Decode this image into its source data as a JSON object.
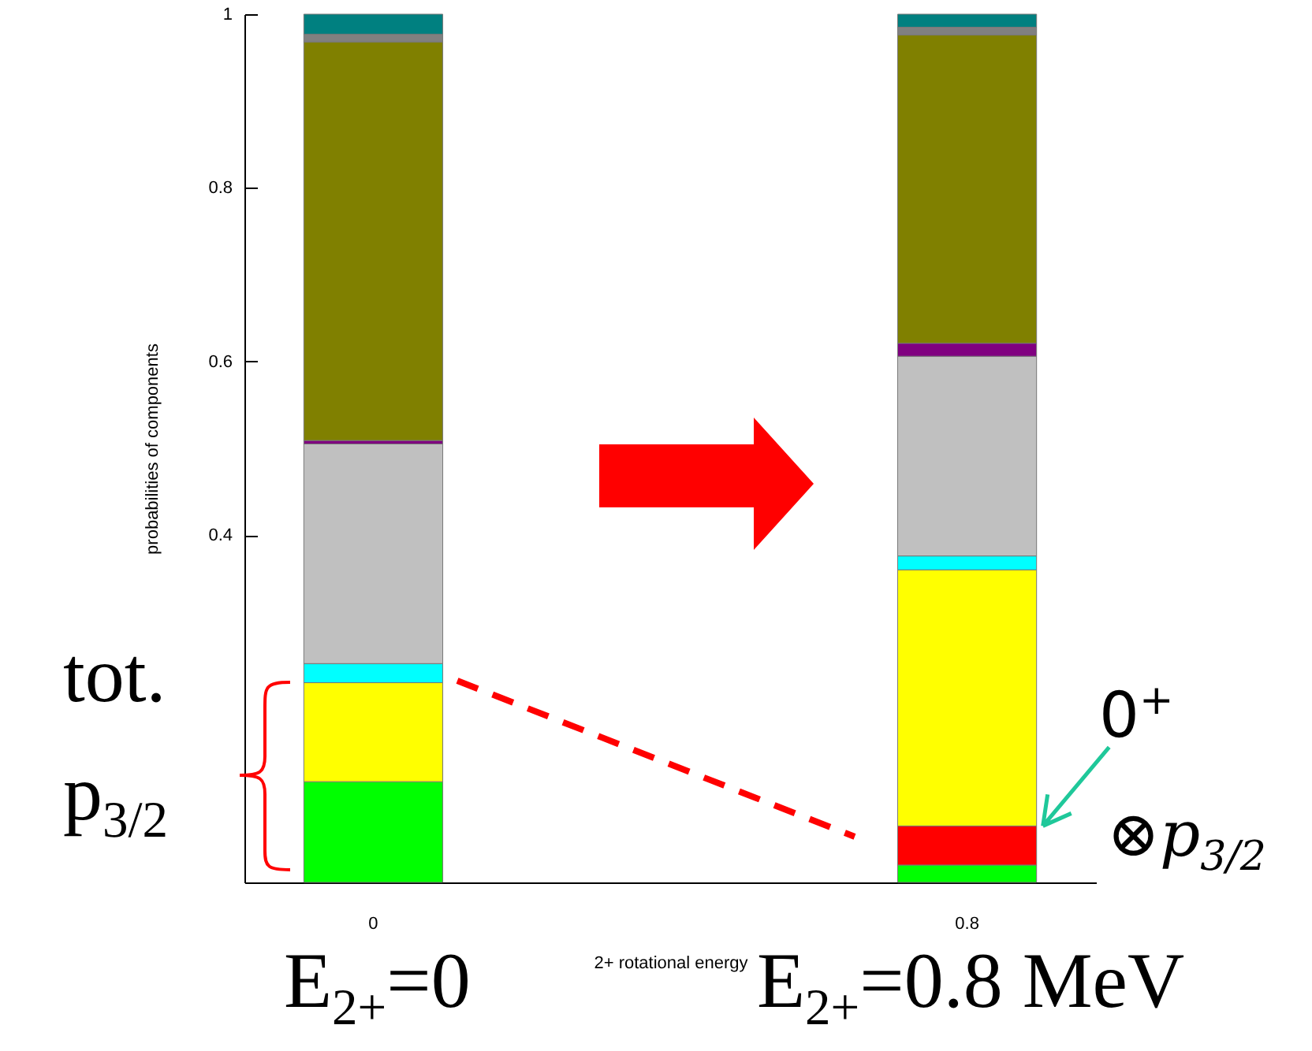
{
  "chart_data": {
    "type": "bar",
    "stacked": true,
    "xlabel": "2+ rotational energy",
    "ylabel": "probabilities of components",
    "categories": [
      "0",
      "0.8"
    ],
    "ylim": [
      0,
      1
    ],
    "yticks": [
      0.4,
      0.6,
      0.8,
      {
        "value": 1,
        "label": "1"
      }
    ],
    "series": [
      {
        "color": "#00ff00",
        "values": [
          0.116,
          0.02
        ]
      },
      {
        "color": "#ff0000",
        "values": [
          null,
          0.045
        ]
      },
      {
        "color": "#ffff00",
        "values": [
          0.114,
          0.295
        ]
      },
      {
        "color": "#00ffff",
        "values": [
          0.022,
          0.016
        ]
      },
      {
        "color": "#c0c0c0",
        "values": [
          0.253,
          0.23
        ]
      },
      {
        "color": "#800080",
        "values": [
          0.004,
          0.015
        ]
      },
      {
        "color": "#808000",
        "values": [
          0.459,
          0.355
        ]
      },
      {
        "color": "#808080",
        "values": [
          0.009,
          0.009
        ]
      },
      {
        "color": "#008080",
        "values": [
          0.023,
          0.015
        ]
      }
    ],
    "annotations": [
      "tot.",
      "p$_{3/2}$",
      {
        "text": "0$^{+}$",
        "x": "0.8",
        "y": 0.065
      },
      "⊗p$_{3/2}$",
      "E$_{2+}$=0",
      "E$_{2+}$=0.8 MeV"
    ]
  }
}
